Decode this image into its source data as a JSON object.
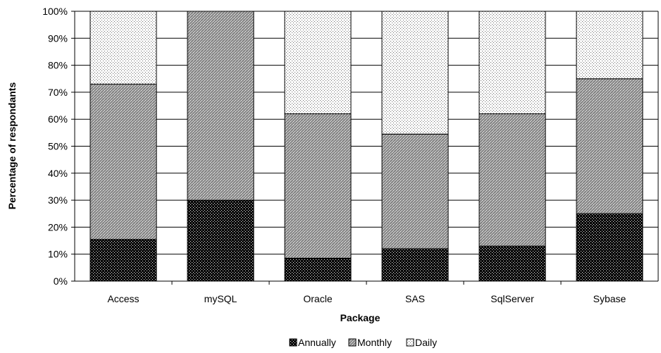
{
  "chart_data": {
    "type": "bar",
    "stacked": true,
    "percent": true,
    "categories": [
      "Access",
      "mySQL",
      "Oracle",
      "SAS",
      "SqlServer",
      "Sybase"
    ],
    "series": [
      {
        "name": "Annually",
        "values": [
          15.5,
          30,
          8.5,
          12,
          13,
          25
        ],
        "pattern": "dense-dots",
        "color": "#000000"
      },
      {
        "name": "Monthly",
        "values": [
          57.5,
          70,
          53.5,
          42.5,
          49,
          50
        ],
        "pattern": "medium-hatch",
        "color": "#808080"
      },
      {
        "name": "Daily",
        "values": [
          27,
          0,
          38,
          45.5,
          38,
          25
        ],
        "pattern": "light-dots",
        "color": "#d0d0d0"
      }
    ],
    "xlabel": "Package",
    "ylabel": "Percentage of respondants",
    "ylim": [
      0,
      100
    ],
    "yticks": [
      "0%",
      "10%",
      "20%",
      "30%",
      "40%",
      "50%",
      "60%",
      "70%",
      "80%",
      "90%",
      "100%"
    ],
    "grid": "horizontal",
    "legend": "bottom"
  }
}
